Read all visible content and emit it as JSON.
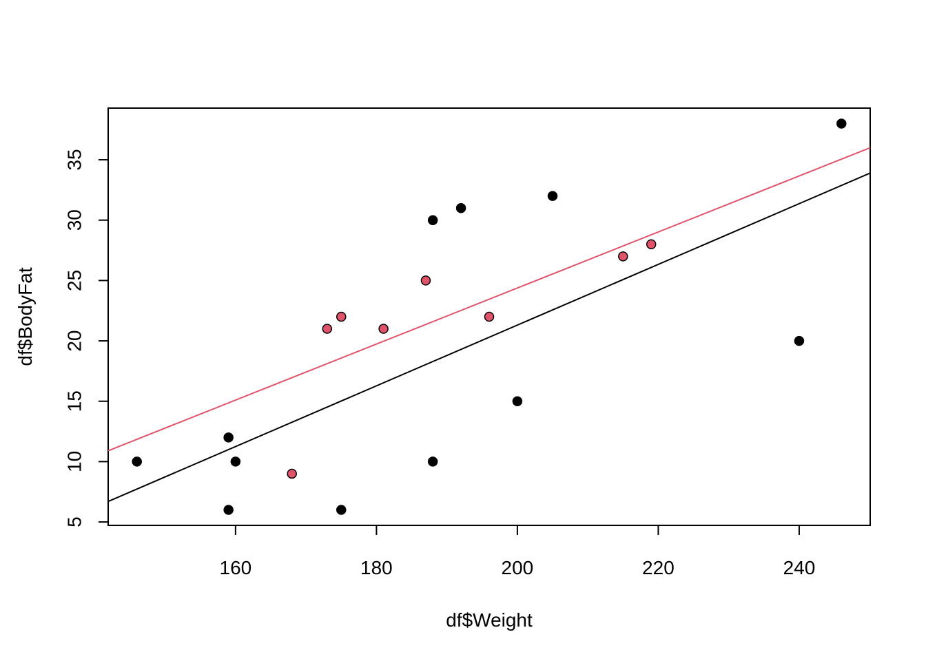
{
  "chart_data": {
    "type": "scatter",
    "title": "",
    "xlabel": "df$Weight",
    "ylabel": "df$BodyFat",
    "xlim": [
      141.92,
      250.08
    ],
    "ylim": [
      4.72,
      39.28
    ],
    "x_ticks": [
      160,
      180,
      200,
      220,
      240
    ],
    "y_ticks": [
      5,
      10,
      15,
      20,
      25,
      30,
      35
    ],
    "grid": false,
    "colors": {
      "group_a": "#000000",
      "group_b": "#DF536B",
      "axis": "#000000"
    },
    "series": [
      {
        "name": "group_a",
        "color": "#000000",
        "points": [
          {
            "x": 146,
            "y": 10
          },
          {
            "x": 159,
            "y": 12
          },
          {
            "x": 160,
            "y": 10
          },
          {
            "x": 159,
            "y": 6
          },
          {
            "x": 175,
            "y": 6
          },
          {
            "x": 188,
            "y": 30
          },
          {
            "x": 188,
            "y": 10
          },
          {
            "x": 192,
            "y": 31
          },
          {
            "x": 200,
            "y": 15
          },
          {
            "x": 205,
            "y": 32
          },
          {
            "x": 240,
            "y": 20
          },
          {
            "x": 246,
            "y": 38
          }
        ]
      },
      {
        "name": "group_b",
        "color": "#DF536B",
        "points": [
          {
            "x": 168,
            "y": 9
          },
          {
            "x": 173,
            "y": 21
          },
          {
            "x": 175,
            "y": 22
          },
          {
            "x": 181,
            "y": 21
          },
          {
            "x": 187,
            "y": 25
          },
          {
            "x": 196,
            "y": 22
          },
          {
            "x": 215,
            "y": 27
          },
          {
            "x": 219,
            "y": 28
          }
        ]
      }
    ],
    "lines": [
      {
        "name": "fit-black",
        "color": "#000000",
        "from": {
          "x": 141.92,
          "y": 6.7
        },
        "to": {
          "x": 250.08,
          "y": 33.9
        }
      },
      {
        "name": "fit-red",
        "color": "#DF536B",
        "from": {
          "x": 141.92,
          "y": 10.9
        },
        "to": {
          "x": 250.08,
          "y": 36.0
        }
      }
    ]
  }
}
